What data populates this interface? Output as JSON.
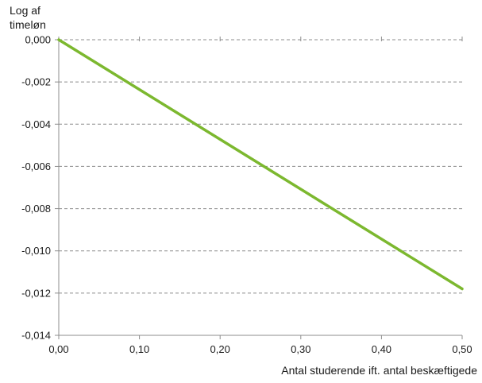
{
  "chart_data": {
    "type": "line",
    "ylabel": "Log af\ntimeløn",
    "xlabel": "Antal studerende ift. antal beskæftigede",
    "xlim": [
      0,
      0.5
    ],
    "ylim": [
      -0.014,
      0
    ],
    "x_ticks": [
      "0,00",
      "0,10",
      "0,20",
      "0,30",
      "0,40",
      "0,50"
    ],
    "y_ticks": [
      "0,000",
      "-0,002",
      "-0,004",
      "-0,006",
      "-0,008",
      "-0,010",
      "-0,012",
      "-0,014"
    ],
    "grid": "horizontal dashed",
    "series": [
      {
        "color": "#7cb82f",
        "x": [
          0,
          0.5
        ],
        "y": [
          0,
          -0.0118
        ]
      }
    ]
  }
}
